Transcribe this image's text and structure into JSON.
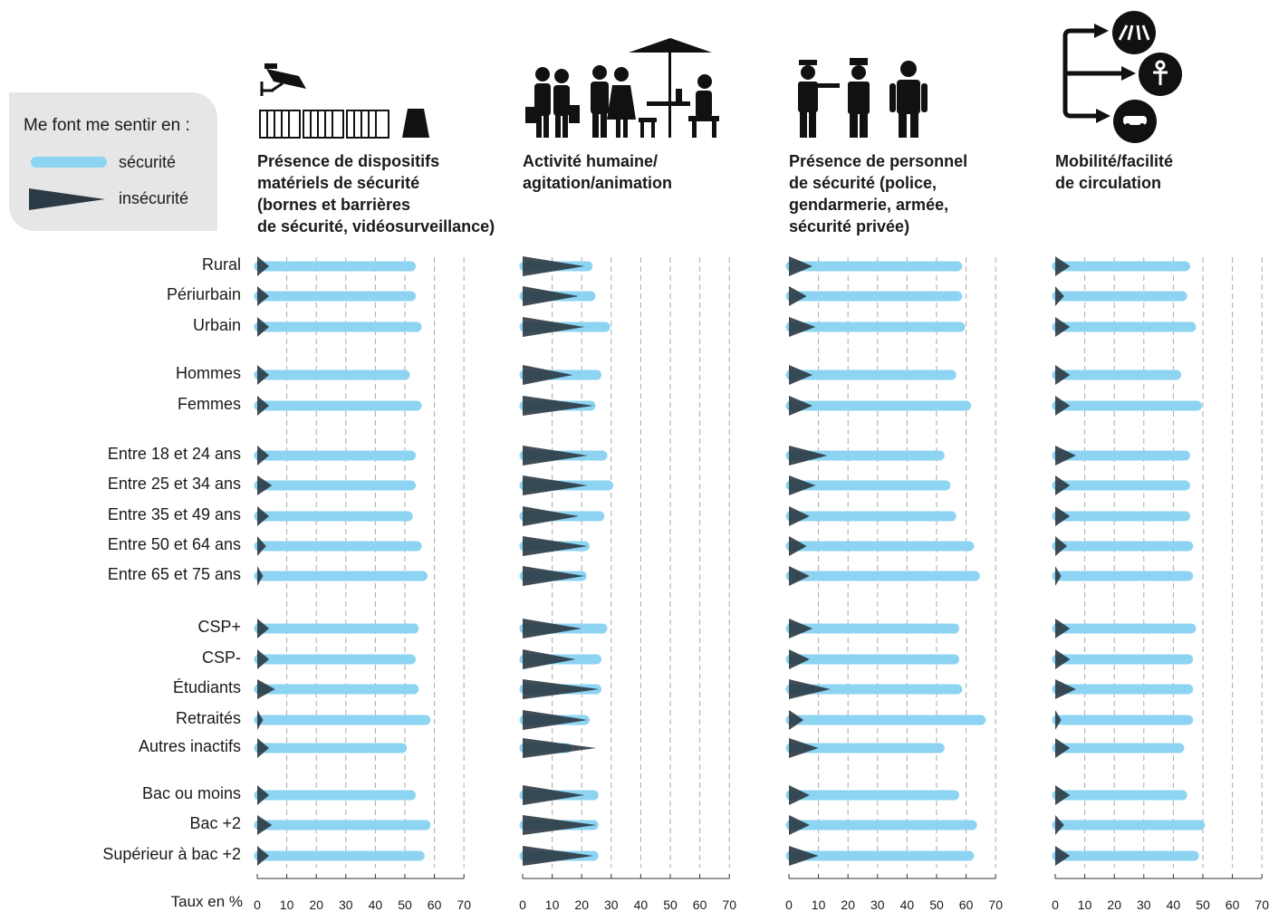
{
  "legend": {
    "title": "Me font me sentir en :",
    "safe_label": "sécurité",
    "unsafe_label": "insécurité"
  },
  "colors": {
    "safe": "#8dd3f2",
    "unsafe": "#2b3a44",
    "grid": "#aaaaaa",
    "legend_bg": "#e6e6e6"
  },
  "panels": [
    {
      "title_lines": [
        "Présence de dispositifs",
        "matériels de sécurité",
        "(bornes et barrières",
        "de sécurité, vidéosurveillance)"
      ],
      "icon": "security-camera-barriers-icon"
    },
    {
      "title_lines": [
        "Activité humaine/",
        "agitation/animation"
      ],
      "icon": "crowd-terrace-icon"
    },
    {
      "title_lines": [
        "Présence de personnel",
        "de sécurité (police,",
        "gendarmerie, armée,",
        "sécurité privée)"
      ],
      "icon": "security-personnel-icon"
    },
    {
      "title_lines": [
        "Mobilité/facilité",
        "de circulation"
      ],
      "icon": "mobility-arrows-icon"
    }
  ],
  "axis_caption": "Taux en %",
  "row_labels": [
    "Rural",
    "Périurbain",
    "Urbain",
    "Hommes",
    "Femmes",
    "Entre 18 et 24 ans",
    "Entre 25 et 34 ans",
    "Entre 35 et 49 ans",
    "Entre 50 et 64 ans",
    "Entre 65 et 75 ans",
    "CSP+",
    "CSP-",
    "Étudiants",
    "Retraités",
    "Autres inactifs",
    "Bac ou moins",
    "Bac +2",
    "Supérieur à bac +2"
  ],
  "chart_data": [
    {
      "type": "bar",
      "title": "Présence de dispositifs matériels de sécurité (bornes et barrières de sécurité, vidéosurveillance)",
      "xlim": [
        0,
        70
      ],
      "ticks": [
        0,
        10,
        20,
        30,
        40,
        50,
        60,
        70
      ],
      "series": [
        {
          "name": "sécurité",
          "values": [
            52,
            52,
            54,
            50,
            54,
            52,
            52,
            51,
            54,
            56,
            53,
            52,
            53,
            57,
            49,
            52,
            57,
            55
          ]
        },
        {
          "name": "insécurité",
          "values": [
            4,
            4,
            4,
            4,
            4,
            4,
            5,
            4,
            3,
            2,
            4,
            4,
            6,
            2,
            4,
            4,
            5,
            4
          ]
        }
      ]
    },
    {
      "type": "bar",
      "title": "Activité humaine/agitation/animation",
      "xlim": [
        0,
        70
      ],
      "ticks": [
        0,
        10,
        20,
        30,
        40,
        50,
        60,
        70
      ],
      "series": [
        {
          "name": "sécurité",
          "values": [
            22,
            23,
            28,
            25,
            23,
            27,
            29,
            26,
            21,
            20,
            27,
            25,
            25,
            21,
            15,
            24,
            24,
            24
          ]
        },
        {
          "name": "insécurité",
          "values": [
            21,
            19,
            21,
            17,
            24,
            22,
            22,
            19,
            22,
            21,
            20,
            18,
            26,
            22,
            25,
            21,
            25,
            24
          ]
        }
      ]
    },
    {
      "type": "bar",
      "title": "Présence de personnel de sécurité (police, gendarmerie, armée, sécurité privée)",
      "xlim": [
        0,
        70
      ],
      "ticks": [
        0,
        10,
        20,
        30,
        40,
        50,
        60,
        70
      ],
      "series": [
        {
          "name": "sécurité",
          "values": [
            57,
            57,
            58,
            55,
            60,
            51,
            53,
            55,
            61,
            63,
            56,
            56,
            57,
            65,
            51,
            56,
            62,
            61
          ]
        },
        {
          "name": "insécurité",
          "values": [
            8,
            6,
            9,
            8,
            8,
            13,
            9,
            7,
            6,
            7,
            8,
            7,
            14,
            5,
            10,
            7,
            7,
            10
          ]
        }
      ]
    },
    {
      "type": "bar",
      "title": "Mobilité/facilité de circulation",
      "xlim": [
        0,
        70
      ],
      "ticks": [
        0,
        10,
        20,
        30,
        40,
        50,
        60,
        70
      ],
      "series": [
        {
          "name": "sécurité",
          "values": [
            44,
            43,
            46,
            41,
            48,
            44,
            44,
            44,
            45,
            45,
            46,
            45,
            45,
            45,
            42,
            43,
            49,
            47
          ]
        },
        {
          "name": "insécurité",
          "values": [
            5,
            3,
            5,
            5,
            5,
            7,
            5,
            5,
            4,
            2,
            5,
            5,
            7,
            2,
            5,
            5,
            3,
            5
          ]
        }
      ]
    }
  ]
}
